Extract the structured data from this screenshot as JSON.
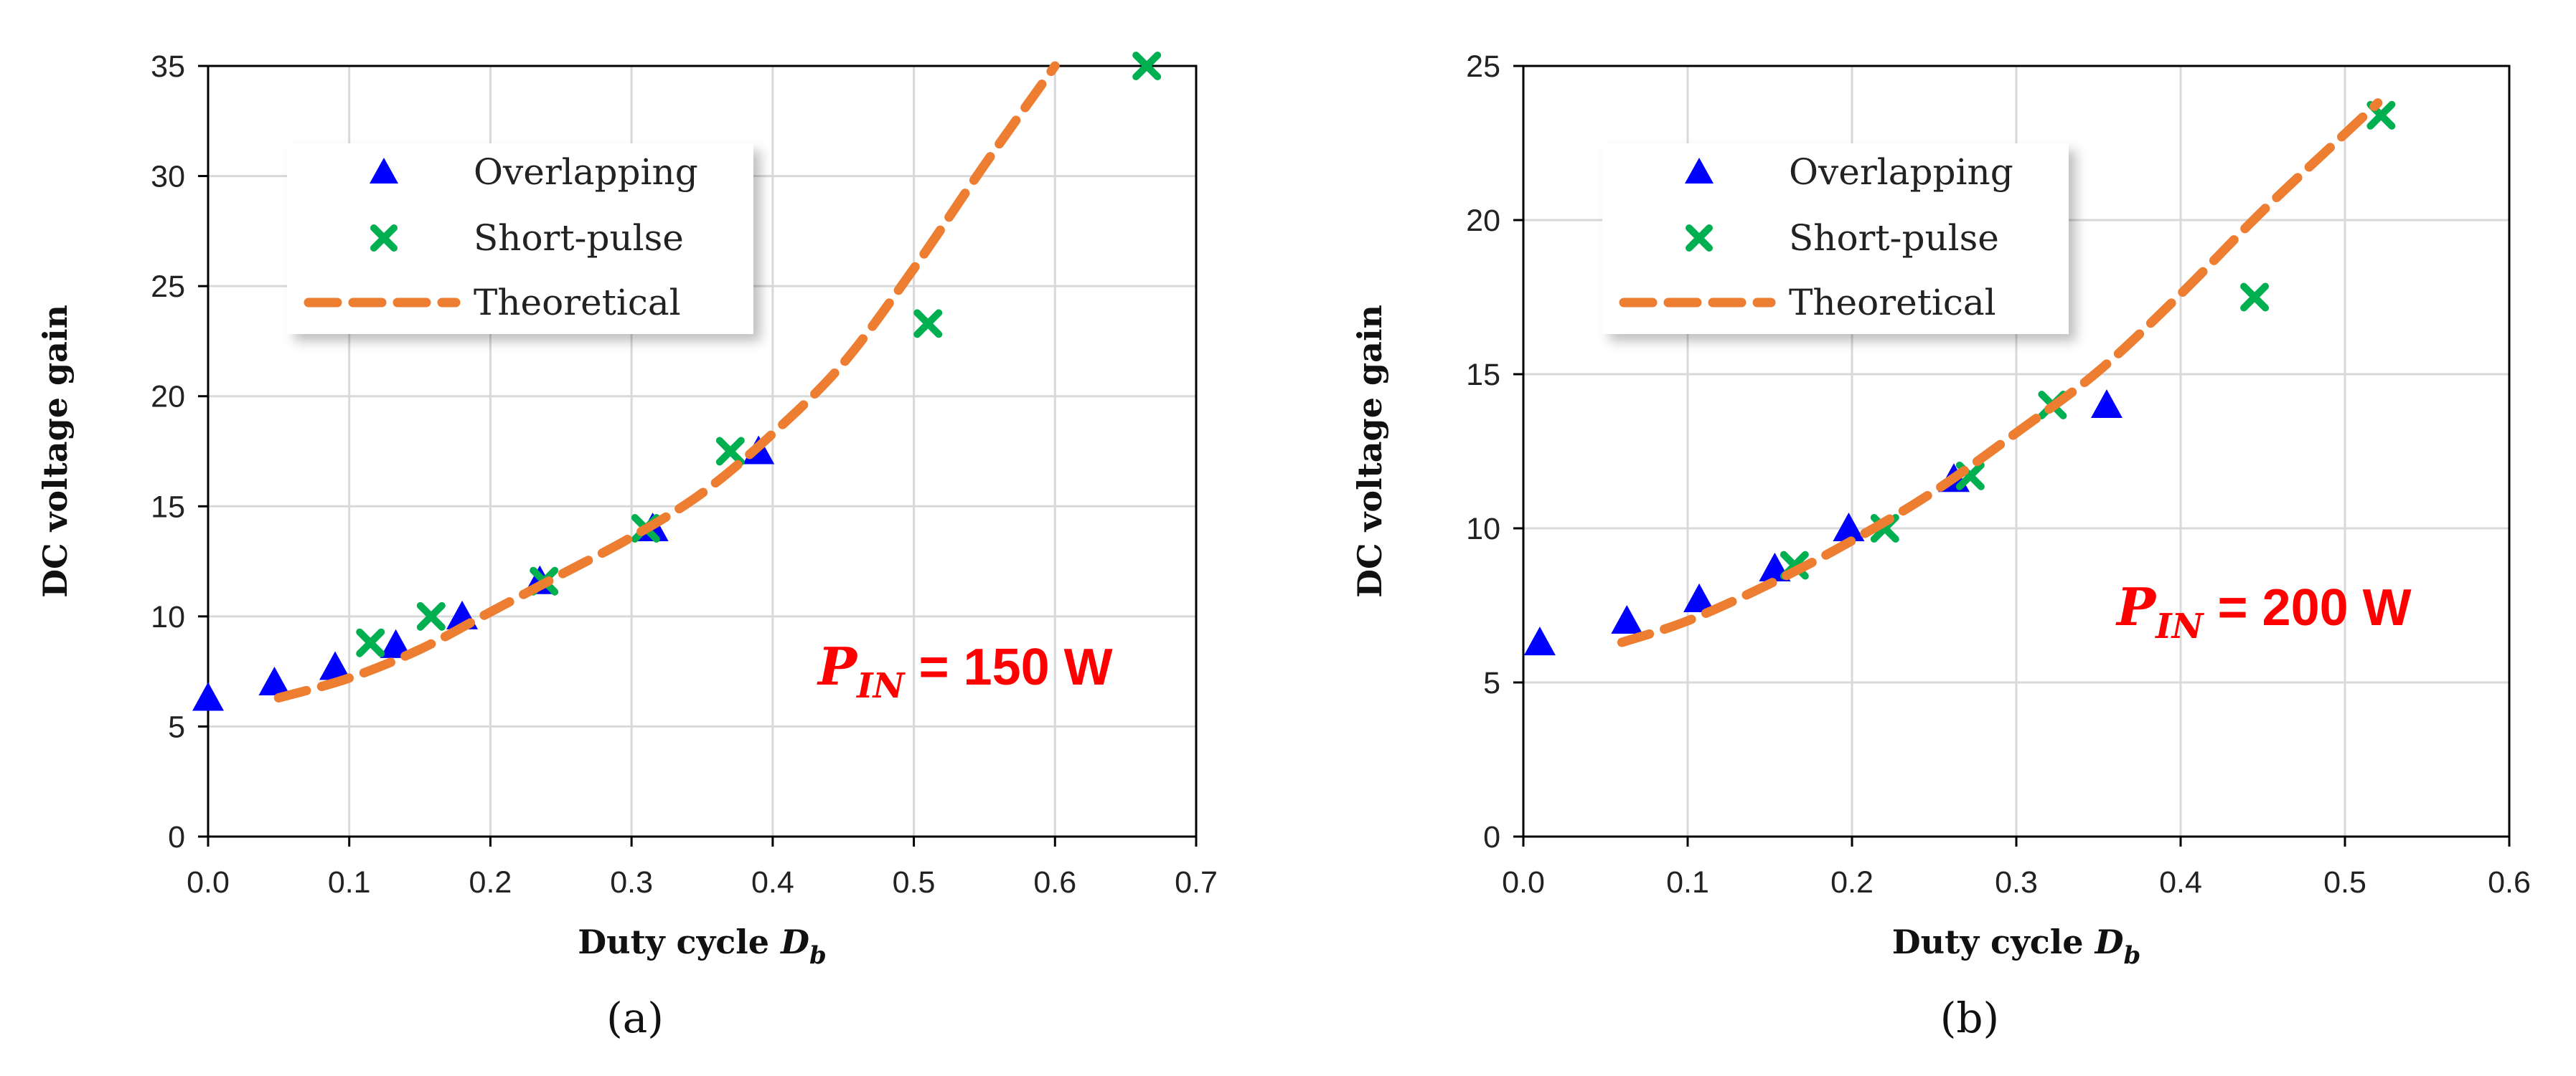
{
  "colors": {
    "overlapping": "#0000ff",
    "short_pulse": "#00b050",
    "theoretical": "#ed7d31",
    "annotation": "#ff0000",
    "grid": "#d9d9d9"
  },
  "chart_data": [
    {
      "type": "scatter",
      "caption": "(a)",
      "xlabel": "Duty cycle",
      "xlabel_symbol": "D",
      "xlabel_sub": "b",
      "ylabel": "DC voltage gain",
      "xlim": [
        0,
        0.7
      ],
      "ylim": [
        0,
        35
      ],
      "xticks": [
        0,
        0.1,
        0.2,
        0.3,
        0.4,
        0.5,
        0.6,
        0.7
      ],
      "xtick_labels": [
        "0.0",
        "0.1",
        "0.2",
        "0.3",
        "0.4",
        "0.5",
        "0.6",
        "0.7"
      ],
      "yticks": [
        0,
        5,
        10,
        15,
        20,
        25,
        30,
        35
      ],
      "ytick_labels": [
        "0",
        "5",
        "10",
        "15",
        "20",
        "25",
        "30",
        "35"
      ],
      "annotation": {
        "symbol": "P",
        "sub": "IN",
        "text": " = 150 W"
      },
      "legend": [
        "Overlapping",
        "Short-pulse",
        "Theoretical"
      ],
      "series": [
        {
          "name": "Overlapping",
          "marker": "triangle",
          "x": [
            0.0,
            0.047,
            0.09,
            0.133,
            0.18,
            0.235,
            0.315,
            0.39
          ],
          "y": [
            6.3,
            7.0,
            7.7,
            8.7,
            10.0,
            11.6,
            14.0,
            17.5
          ]
        },
        {
          "name": "Short-pulse",
          "marker": "x",
          "x": [
            0.115,
            0.158,
            0.238,
            0.31,
            0.37,
            0.51,
            0.665
          ],
          "y": [
            8.8,
            10.0,
            11.6,
            14.0,
            17.5,
            23.3,
            35.0
          ]
        },
        {
          "name": "Theoretical",
          "marker": "dashed-line",
          "x": [
            0.05,
            0.1,
            0.15,
            0.2,
            0.25,
            0.3,
            0.35,
            0.4,
            0.45,
            0.5,
            0.55,
            0.6
          ],
          "y": [
            6.3,
            7.2,
            8.5,
            10.2,
            11.9,
            13.6,
            15.6,
            18.3,
            21.5,
            25.8,
            30.5,
            35.0
          ]
        }
      ]
    },
    {
      "type": "scatter",
      "caption": "(b)",
      "xlabel": "Duty cycle",
      "xlabel_symbol": "D",
      "xlabel_sub": "b",
      "ylabel": "DC voltage gain",
      "xlim": [
        0,
        0.6
      ],
      "ylim": [
        0,
        25
      ],
      "xticks": [
        0,
        0.1,
        0.2,
        0.3,
        0.4,
        0.5,
        0.6
      ],
      "xtick_labels": [
        "0.0",
        "0.1",
        "0.2",
        "0.3",
        "0.4",
        "0.5",
        "0.6"
      ],
      "yticks": [
        0,
        5,
        10,
        15,
        20,
        25
      ],
      "ytick_labels": [
        "0",
        "5",
        "10",
        "15",
        "20",
        "25"
      ],
      "annotation": {
        "symbol": "P",
        "sub": "IN",
        "text": " = 200 W"
      },
      "legend": [
        "Overlapping",
        "Short-pulse",
        "Theoretical"
      ],
      "series": [
        {
          "name": "Overlapping",
          "marker": "triangle",
          "x": [
            0.01,
            0.063,
            0.107,
            0.153,
            0.198,
            0.262,
            0.355
          ],
          "y": [
            6.3,
            7.0,
            7.7,
            8.7,
            10.0,
            11.6,
            14.0
          ]
        },
        {
          "name": "Short-pulse",
          "marker": "x",
          "x": [
            0.165,
            0.22,
            0.272,
            0.322,
            0.445,
            0.522
          ],
          "y": [
            8.8,
            10.0,
            11.7,
            14.0,
            17.5,
            23.4
          ]
        },
        {
          "name": "Theoretical",
          "marker": "dashed-line",
          "x": [
            0.06,
            0.1,
            0.15,
            0.2,
            0.25,
            0.3,
            0.35,
            0.4,
            0.45,
            0.5,
            0.52
          ],
          "y": [
            6.3,
            7.0,
            8.2,
            9.6,
            11.2,
            13.1,
            15.1,
            17.6,
            20.3,
            22.8,
            23.8
          ]
        }
      ]
    }
  ]
}
